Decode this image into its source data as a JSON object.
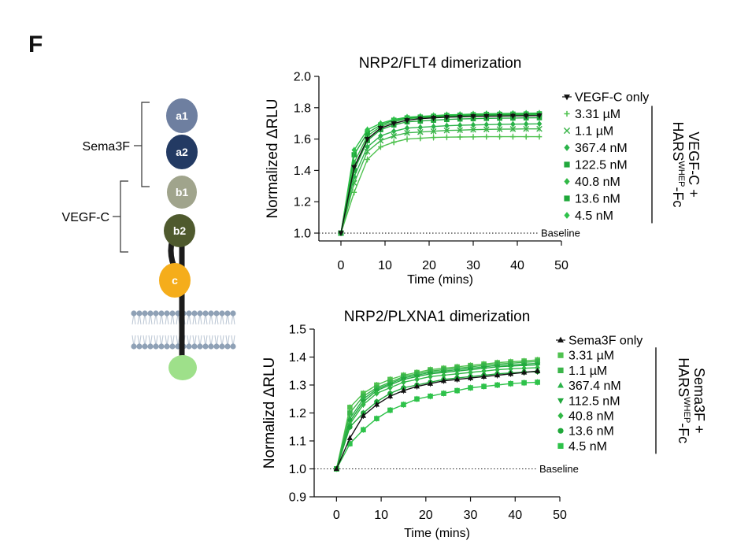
{
  "panel_label": "F",
  "schematic": {
    "domains": [
      "a1",
      "a2",
      "b1",
      "b2",
      "c"
    ],
    "labels": {
      "sema3f": "Sema3F",
      "vegfc": "VEGF-C"
    },
    "colors": {
      "a1": "#6e7fa0",
      "a2": "#233a63",
      "b1": "#a0a48c",
      "b2": "#4f5a2e",
      "c": "#f5ad1b",
      "tail": "#9ee08a",
      "membrane": "#8fa1b6",
      "stalk": "#1b1b1b"
    }
  },
  "chart_data": [
    {
      "type": "line",
      "title": "NRP2/FLT4 dimerization",
      "xlabel": "Time (mins)",
      "ylabel": "Normalized ΔRLU",
      "xlim": [
        -5,
        50
      ],
      "ylim": [
        0.95,
        2.0
      ],
      "xticks": [
        "0",
        "10",
        "20",
        "30",
        "40",
        "50"
      ],
      "yticks": [
        "1.0",
        "1.2",
        "1.4",
        "1.6",
        "1.8",
        "2.0"
      ],
      "baseline": {
        "y": 1.0,
        "label": "Baseline"
      },
      "bracket_label": {
        "line1": "VEGF-C +",
        "line2_main": "HARS",
        "line2_sup": "WHEP",
        "line2_tail": "-Fc"
      },
      "legend_position": "right",
      "x": [
        0,
        3,
        6,
        9,
        12,
        15,
        18,
        21,
        24,
        27,
        30,
        33,
        36,
        39,
        42,
        45
      ],
      "series": [
        {
          "name": "VEGF-C only",
          "color": "#111111",
          "marker": "triangle-down",
          "values": [
            1.0,
            1.42,
            1.6,
            1.67,
            1.7,
            1.72,
            1.73,
            1.735,
            1.74,
            1.742,
            1.745,
            1.746,
            1.747,
            1.748,
            1.749,
            1.75
          ]
        },
        {
          "name": "3.31 µM",
          "color": "#4fc24f",
          "marker": "plus",
          "values": [
            1.0,
            1.26,
            1.47,
            1.55,
            1.58,
            1.6,
            1.605,
            1.61,
            1.612,
            1.613,
            1.614,
            1.615,
            1.615,
            1.615,
            1.615,
            1.615
          ]
        },
        {
          "name": "1.1 µM",
          "color": "#3bb54a",
          "marker": "x",
          "values": [
            1.0,
            1.32,
            1.52,
            1.59,
            1.62,
            1.64,
            1.645,
            1.65,
            1.655,
            1.657,
            1.66,
            1.662,
            1.663,
            1.664,
            1.665,
            1.665
          ]
        },
        {
          "name": "367.4 nM",
          "color": "#2bb34a",
          "marker": "diamond",
          "values": [
            1.0,
            1.36,
            1.55,
            1.62,
            1.65,
            1.67,
            1.675,
            1.68,
            1.685,
            1.688,
            1.69,
            1.692,
            1.694,
            1.695,
            1.696,
            1.697
          ]
        },
        {
          "name": "122.5 nM",
          "color": "#22a83d",
          "marker": "square",
          "values": [
            1.0,
            1.4,
            1.59,
            1.66,
            1.69,
            1.71,
            1.715,
            1.72,
            1.725,
            1.728,
            1.73,
            1.732,
            1.733,
            1.734,
            1.735,
            1.736
          ]
        },
        {
          "name": "40.8 nM",
          "color": "#31b846",
          "marker": "diamond",
          "values": [
            1.0,
            1.45,
            1.62,
            1.68,
            1.71,
            1.73,
            1.735,
            1.74,
            1.745,
            1.748,
            1.75,
            1.752,
            1.753,
            1.754,
            1.755,
            1.756
          ]
        },
        {
          "name": "13.6 nM",
          "color": "#1fa83a",
          "marker": "square",
          "values": [
            1.0,
            1.5,
            1.64,
            1.69,
            1.72,
            1.735,
            1.74,
            1.745,
            1.75,
            1.752,
            1.755,
            1.757,
            1.758,
            1.759,
            1.76,
            1.761
          ]
        },
        {
          "name": "4.5 nM",
          "color": "#2ec24a",
          "marker": "diamond",
          "values": [
            1.0,
            1.53,
            1.66,
            1.7,
            1.725,
            1.74,
            1.745,
            1.75,
            1.755,
            1.757,
            1.76,
            1.762,
            1.763,
            1.764,
            1.765,
            1.766
          ]
        }
      ]
    },
    {
      "type": "line",
      "title": "NRP2/PLXNA1 dimerization",
      "xlabel": "Time (mins)",
      "ylabel": "Normalizd ΔRLU",
      "xlim": [
        -5,
        50
      ],
      "ylim": [
        0.9,
        1.5
      ],
      "xticks": [
        "0",
        "10",
        "20",
        "30",
        "40",
        "50"
      ],
      "yticks": [
        "0.9",
        "1.0",
        "1.1",
        "1.2",
        "1.3",
        "1.4",
        "1.5"
      ],
      "baseline": {
        "y": 1.0,
        "label": "Baseline"
      },
      "bracket_label": {
        "line1": "Sema3F +",
        "line2_main": "HARS",
        "line2_sup": "WHEP",
        "line2_tail": "-Fc"
      },
      "legend_position": "right",
      "x": [
        0,
        3,
        6,
        9,
        12,
        15,
        18,
        21,
        24,
        27,
        30,
        33,
        36,
        39,
        42,
        45
      ],
      "series": [
        {
          "name": "Sema3F only",
          "color": "#111111",
          "marker": "triangle",
          "values": [
            1.0,
            1.11,
            1.19,
            1.23,
            1.26,
            1.28,
            1.295,
            1.305,
            1.315,
            1.32,
            1.325,
            1.33,
            1.335,
            1.34,
            1.345,
            1.35
          ]
        },
        {
          "name": "3.31 µM",
          "color": "#4fc24f",
          "marker": "square",
          "values": [
            1.0,
            1.22,
            1.27,
            1.3,
            1.32,
            1.335,
            1.345,
            1.355,
            1.36,
            1.365,
            1.37,
            1.375,
            1.38,
            1.383,
            1.386,
            1.39
          ]
        },
        {
          "name": "1.1 µM",
          "color": "#3bb54a",
          "marker": "square",
          "values": [
            1.0,
            1.2,
            1.26,
            1.29,
            1.31,
            1.33,
            1.34,
            1.35,
            1.355,
            1.36,
            1.365,
            1.37,
            1.375,
            1.378,
            1.381,
            1.384
          ]
        },
        {
          "name": "367.4 nM",
          "color": "#2bb34a",
          "marker": "triangle",
          "values": [
            1.0,
            1.18,
            1.25,
            1.285,
            1.305,
            1.325,
            1.335,
            1.345,
            1.35,
            1.355,
            1.36,
            1.365,
            1.37,
            1.372,
            1.375,
            1.378
          ]
        },
        {
          "name": "112.5 nM",
          "color": "#22a83d",
          "marker": "triangle-down",
          "values": [
            1.0,
            1.17,
            1.24,
            1.28,
            1.3,
            1.32,
            1.33,
            1.34,
            1.345,
            1.35,
            1.355,
            1.36,
            1.365,
            1.368,
            1.37,
            1.372
          ]
        },
        {
          "name": "40.8 nM",
          "color": "#31b846",
          "marker": "diamond",
          "values": [
            1.0,
            1.16,
            1.23,
            1.27,
            1.29,
            1.31,
            1.32,
            1.33,
            1.335,
            1.34,
            1.345,
            1.35,
            1.355,
            1.358,
            1.36,
            1.362
          ]
        },
        {
          "name": "13.6 nM",
          "color": "#1fa83a",
          "marker": "circle",
          "values": [
            1.0,
            1.15,
            1.2,
            1.24,
            1.27,
            1.29,
            1.3,
            1.31,
            1.32,
            1.325,
            1.33,
            1.335,
            1.34,
            1.343,
            1.346,
            1.348
          ]
        },
        {
          "name": "4.5 nM",
          "color": "#2ec24a",
          "marker": "square",
          "values": [
            1.0,
            1.09,
            1.14,
            1.18,
            1.21,
            1.23,
            1.25,
            1.26,
            1.27,
            1.28,
            1.29,
            1.295,
            1.3,
            1.305,
            1.308,
            1.31
          ]
        }
      ]
    }
  ]
}
